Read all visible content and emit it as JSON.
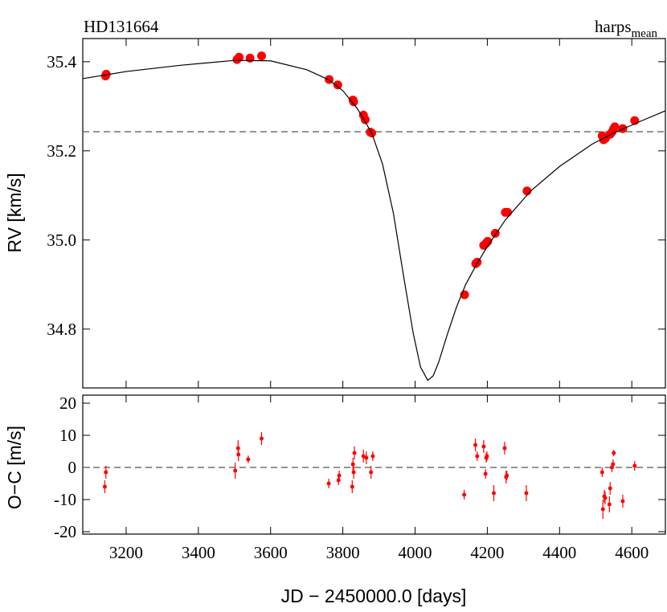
{
  "chart_data": [
    {
      "type": "scatter",
      "title": "HD131664",
      "label": "harps",
      "label_sub": "mean",
      "ylabel": "RV [km/s]",
      "xlim": [
        3080,
        4693
      ],
      "ylim": [
        34.668,
        35.452
      ],
      "yticks": [
        34.8,
        {
          "value": 35,
          "label": "35.0"
        },
        35.2,
        35.4
      ],
      "hline": 35.243,
      "series": [
        {
          "type": "scatter",
          "color": "#ff0000",
          "x": [
            3143,
            3145,
            3507,
            3513,
            3543,
            3575,
            3762,
            3786,
            3828,
            3830,
            3857,
            3862,
            3876,
            3880,
            4137,
            4168,
            4172,
            4190,
            4197,
            4201,
            4222,
            4250,
            4256,
            4310,
            4518,
            4522,
            4527,
            4540,
            4545,
            4550,
            4553,
            4575,
            4608
          ],
          "values": [
            35.368,
            35.372,
            35.405,
            35.41,
            35.408,
            35.413,
            35.36,
            35.348,
            35.314,
            35.31,
            35.28,
            35.27,
            35.242,
            35.24,
            34.877,
            34.947,
            34.95,
            34.988,
            34.993,
            34.997,
            35.015,
            35.062,
            35.062,
            35.11,
            35.234,
            35.225,
            35.228,
            35.237,
            35.242,
            35.25,
            35.254,
            35.25,
            35.268
          ]
        },
        {
          "type": "line",
          "color": "#000000",
          "x": [
            3080,
            3200,
            3350,
            3500,
            3600,
            3700,
            3760,
            3800,
            3840,
            3880,
            3910,
            3940,
            3970,
            3995,
            4015,
            4035,
            4050,
            4065,
            4090,
            4115,
            4140,
            4170,
            4200,
            4250,
            4320,
            4400,
            4490,
            4550,
            4620,
            4693
          ],
          "values": [
            35.362,
            35.378,
            35.392,
            35.403,
            35.402,
            35.382,
            35.36,
            35.335,
            35.295,
            35.24,
            35.17,
            35.06,
            34.91,
            34.79,
            34.715,
            34.685,
            34.695,
            34.725,
            34.79,
            34.85,
            34.9,
            34.945,
            34.985,
            35.045,
            35.11,
            35.165,
            35.215,
            35.24,
            35.265,
            35.29
          ]
        }
      ]
    },
    {
      "type": "errorbar",
      "ylabel": "O−C [m/s]",
      "xlabel": "JD − 2450000.0 [days]",
      "xlim": [
        3080,
        4693
      ],
      "ylim": [
        -20.75,
        22.5
      ],
      "xticks": [
        3200,
        3400,
        3600,
        3800,
        4000,
        4200,
        4400,
        4600
      ],
      "yticks": [
        -20,
        -10,
        0,
        10,
        20
      ],
      "hline": 0,
      "series": [
        {
          "type": "errorbar",
          "color": "#ff0000",
          "x": [
            3141,
            3144,
            3502,
            3510,
            3511,
            3538,
            3575,
            3761,
            3788,
            3790,
            3826,
            3828,
            3830,
            3832,
            3857,
            3865,
            3878,
            3883,
            4136,
            4167,
            4172,
            4190,
            4195,
            4197,
            4199,
            4218,
            4248,
            4252,
            4254,
            4308,
            4518,
            4520,
            4524,
            4526,
            4538,
            4540,
            4545,
            4548,
            4550,
            4575,
            4608
          ],
          "values": [
            -6,
            -1.5,
            -1,
            6,
            4,
            2.5,
            9,
            -5,
            -4,
            -2.5,
            -6,
            1,
            -1.5,
            4.5,
            3.5,
            3,
            -1.5,
            3.5,
            -8.5,
            7,
            3.5,
            6.5,
            -2,
            3,
            3.5,
            -8,
            6,
            -3,
            -2.5,
            -8,
            -1.5,
            -13,
            -9,
            -9.5,
            -11.5,
            -6.5,
            0,
            1,
            4.5,
            -10.5,
            0.5
          ],
          "errors": [
            2,
            2,
            2.5,
            2.5,
            2,
            1.2,
            2,
            1.5,
            1.5,
            1.5,
            2,
            2,
            2,
            2,
            2,
            2,
            2,
            1.5,
            1.5,
            2,
            1.5,
            2,
            1.5,
            1.5,
            1.5,
            2.5,
            2,
            2,
            1.5,
            2.5,
            1.5,
            3,
            2,
            2,
            2.5,
            2,
            1.5,
            1.5,
            1,
            2,
            1.5
          ]
        }
      ]
    }
  ]
}
